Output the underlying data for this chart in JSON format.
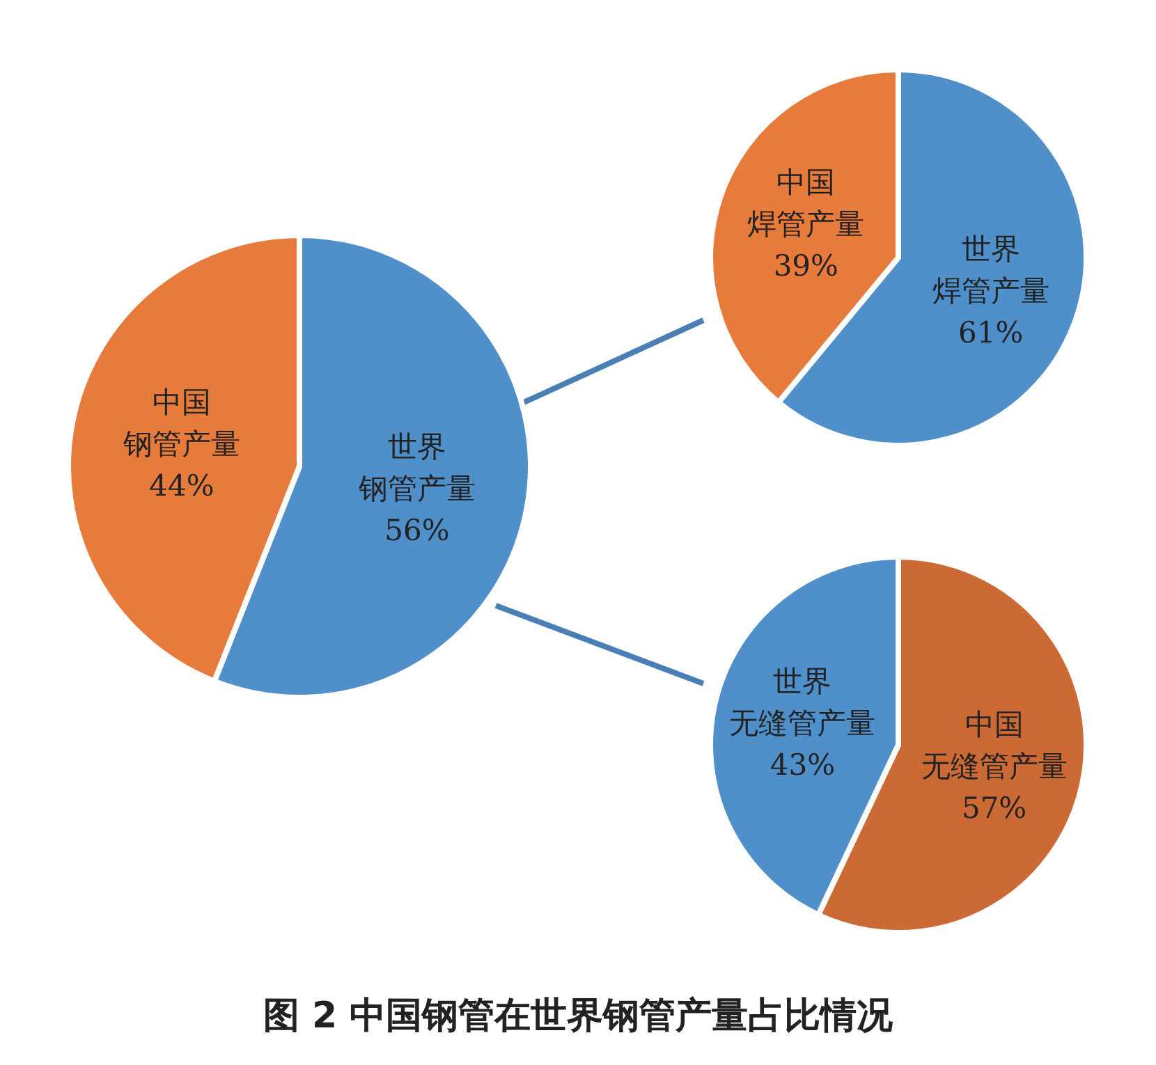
{
  "chart_data": [
    {
      "type": "pie",
      "categories": [
        "世界钢管产量",
        "中国钢管产量"
      ],
      "values": [
        56,
        44
      ],
      "value_labels": [
        "56%",
        "44%"
      ],
      "colors": [
        "#4f8fca",
        "#e67b3c"
      ],
      "annotations": [
        "图 2 中国钢管在世界钢管产量占比情况"
      ]
    },
    {
      "type": "pie",
      "categories": [
        "世界焊管产量",
        "中国焊管产量"
      ],
      "values": [
        61,
        39
      ],
      "value_labels": [
        "61%",
        "39%"
      ],
      "colors": [
        "#4f8fca",
        "#e67b3c"
      ]
    },
    {
      "type": "pie",
      "categories": [
        "中国无缝管产量",
        "世界无缝管产量"
      ],
      "values": [
        57,
        43
      ],
      "value_labels": [
        "57%",
        "43%"
      ],
      "colors": [
        "#cc6a35",
        "#4f8fca"
      ]
    }
  ]
}
